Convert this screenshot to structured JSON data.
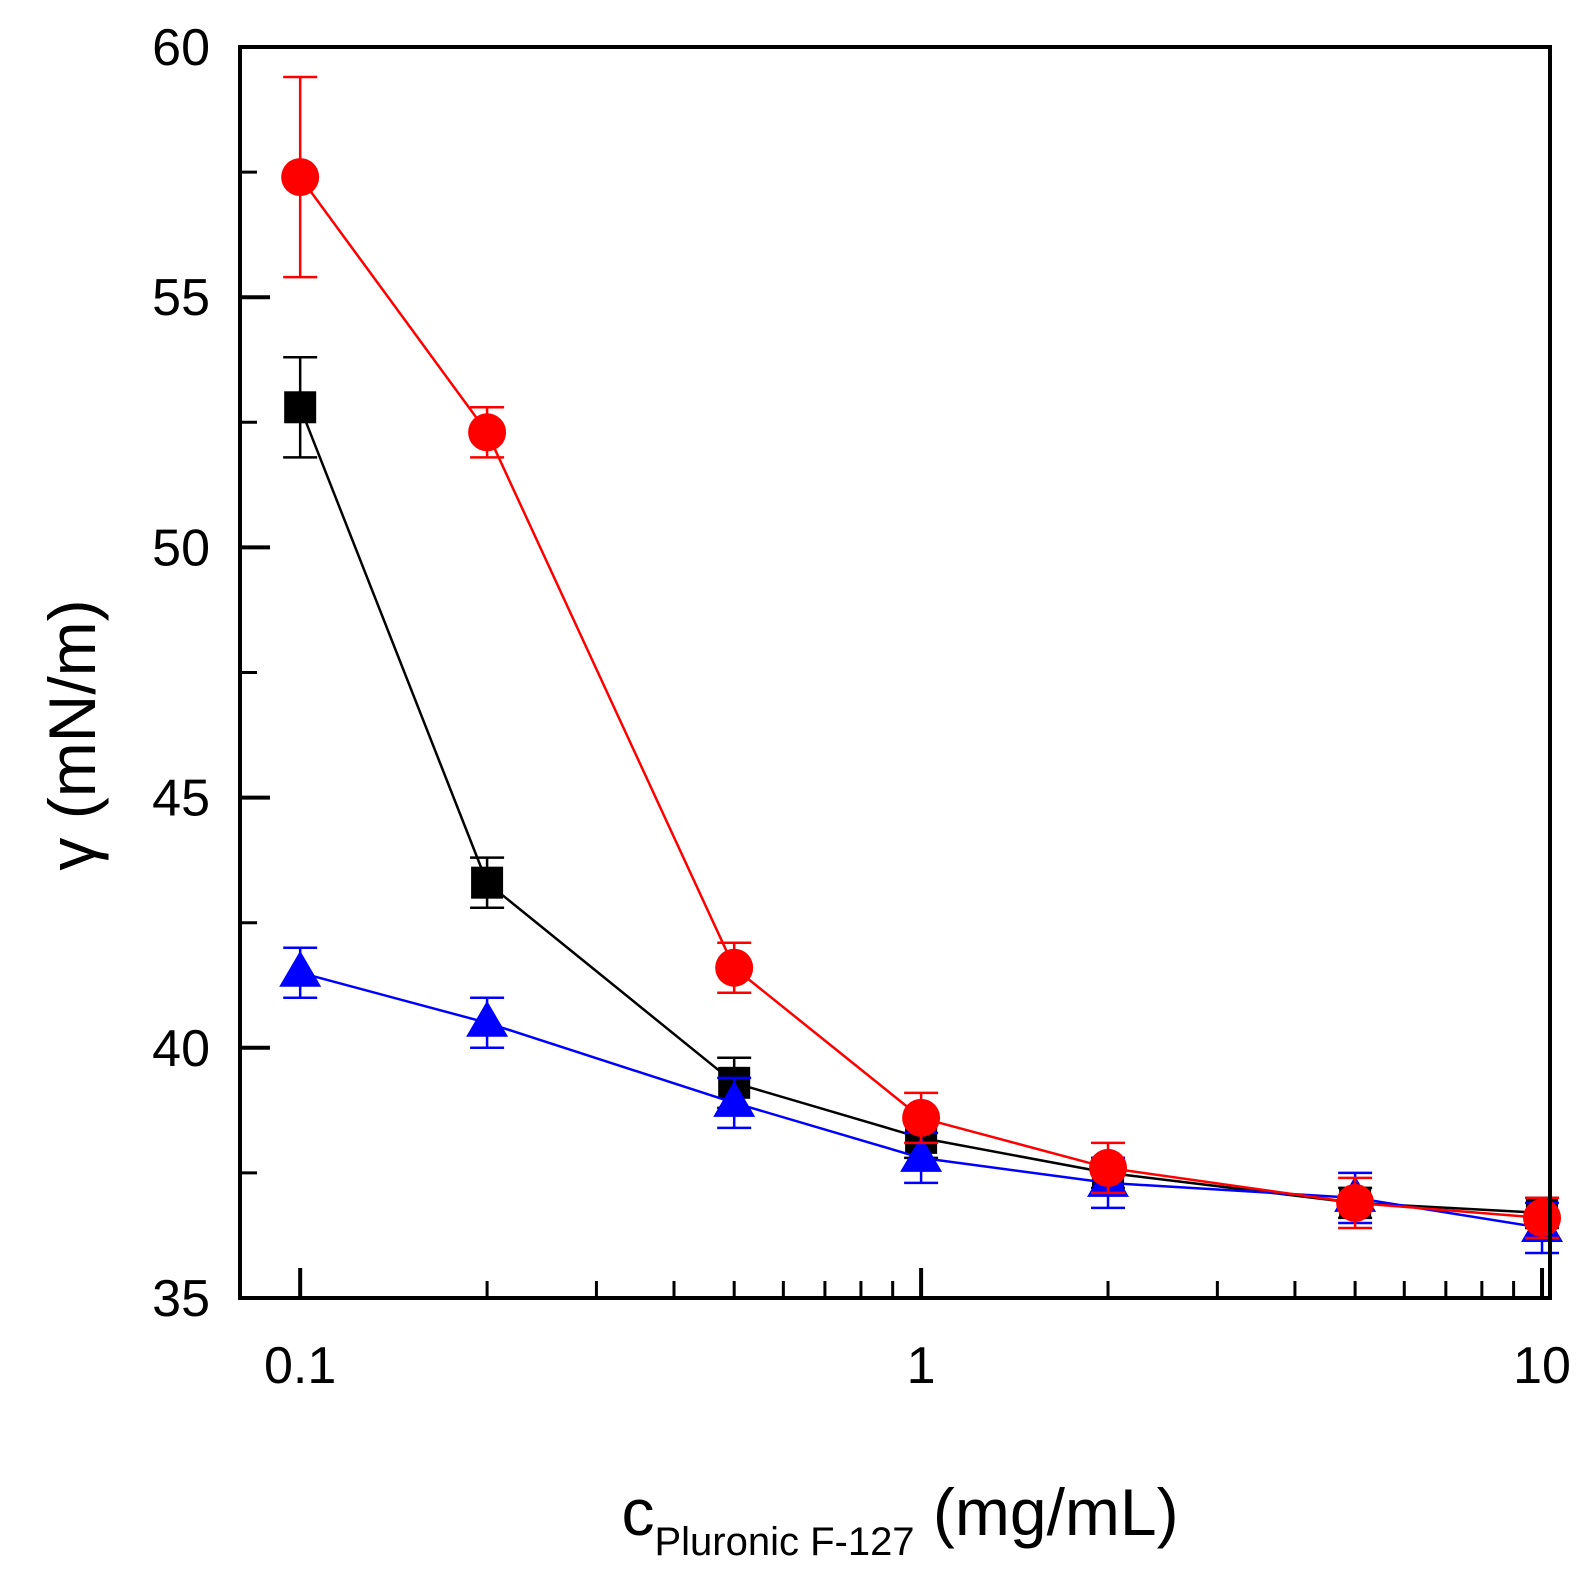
{
  "chart_data": {
    "type": "line",
    "x_scale": "log",
    "xlabel_main": "c",
    "xlabel_sub": "Pluronic F-127",
    "xlabel_unit": " (mg/mL)",
    "ylabel": "γ (mN/m)",
    "xlim": [
      0.08,
      10.3
    ],
    "ylim": [
      35,
      60
    ],
    "x_ticks": [
      {
        "value": 0.1,
        "label": "0.1"
      },
      {
        "value": 1,
        "label": "1"
      },
      {
        "value": 10,
        "label": "10"
      }
    ],
    "y_ticks": [
      {
        "value": 35,
        "label": "35"
      },
      {
        "value": 40,
        "label": "40"
      },
      {
        "value": 45,
        "label": "45"
      },
      {
        "value": 50,
        "label": "50"
      },
      {
        "value": 55,
        "label": "55"
      },
      {
        "value": 60,
        "label": "60"
      }
    ],
    "y_minor_ticks": [
      37.5,
      42.5,
      47.5,
      52.5,
      57.5
    ],
    "x_minor_ticks": [
      0.2,
      0.3,
      0.4,
      0.5,
      0.6,
      0.7,
      0.8,
      0.9,
      2,
      3,
      4,
      5,
      6,
      7,
      8,
      9
    ],
    "x": [
      0.1,
      0.2,
      0.5,
      1,
      2,
      5,
      10
    ],
    "series": [
      {
        "name": "square",
        "marker": "square",
        "color": "#000000",
        "values": [
          52.8,
          43.3,
          39.3,
          38.2,
          37.5,
          36.9,
          36.7
        ],
        "errors": [
          1.0,
          0.5,
          0.5,
          0.4,
          0.3,
          0.3,
          0.3
        ]
      },
      {
        "name": "triangle",
        "marker": "triangle",
        "color": "#0000ff",
        "values": [
          41.5,
          40.5,
          38.9,
          37.8,
          37.3,
          37.0,
          36.4
        ],
        "errors": [
          0.5,
          0.5,
          0.5,
          0.5,
          0.5,
          0.5,
          0.5
        ]
      },
      {
        "name": "circle",
        "marker": "circle",
        "color": "#ff0000",
        "values": [
          57.4,
          52.3,
          41.6,
          38.6,
          37.6,
          36.9,
          36.6
        ],
        "errors": [
          2.0,
          0.5,
          0.5,
          0.5,
          0.5,
          0.5,
          0.4
        ]
      }
    ]
  }
}
